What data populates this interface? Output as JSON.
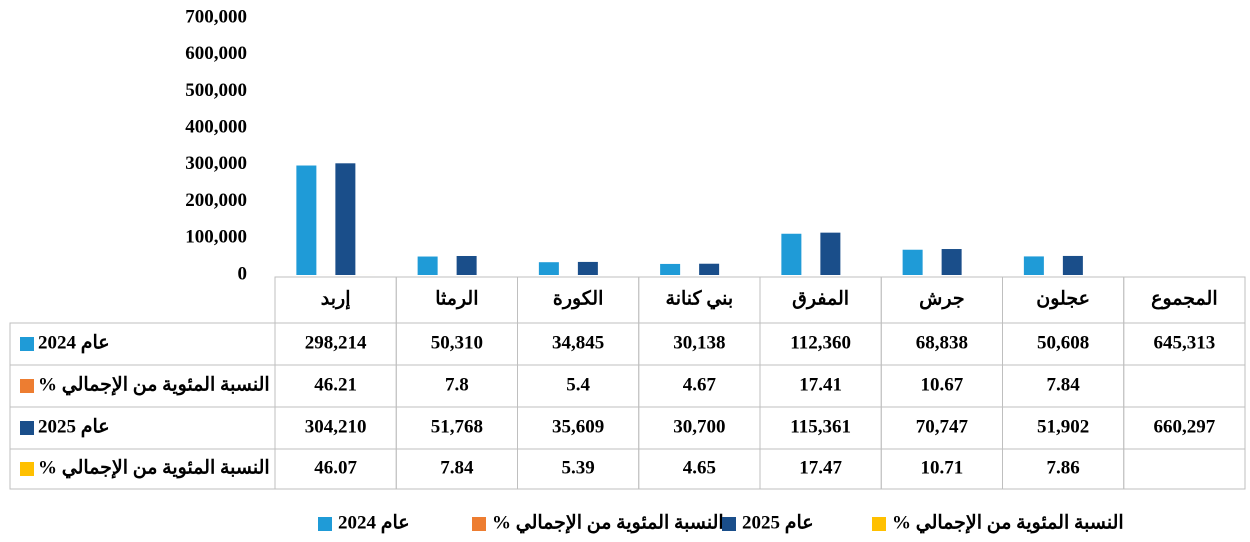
{
  "chart_data": {
    "type": "bar",
    "categories": [
      "إربد",
      "الرمثا",
      "الكورة",
      "بني كنانة",
      "المفرق",
      "جرش",
      "عجلون"
    ],
    "total_header": "المجموع",
    "ylim": [
      0,
      700000
    ],
    "yticks": [
      0,
      {
        "value": 100000,
        "label": "100,000"
      },
      {
        "value": 200000,
        "label": "200,000"
      },
      {
        "value": 300000,
        "label": "300,000"
      },
      {
        "value": 400000,
        "label": "400,000"
      },
      {
        "value": 500000,
        "label": "500,000"
      },
      {
        "value": 600000,
        "label": "600,000"
      },
      {
        "value": 700000,
        "label": "700,000"
      }
    ],
    "series": [
      {
        "name": "عام 2024",
        "color": "#1f9bd7",
        "values": [
          298214,
          50310,
          34845,
          30138,
          112360,
          68838,
          50608
        ],
        "value_labels": [
          "298,214",
          "50,310",
          "34,845",
          "30,138",
          "112,360",
          "68,838",
          "50,608"
        ],
        "total": 645313,
        "total_label": "645,313"
      },
      {
        "name": "النسبة المئوية من الإجمالي %",
        "color": "#ed7d31",
        "values": [
          46.21,
          7.8,
          5.4,
          4.67,
          17.41,
          10.67,
          7.84
        ]
      },
      {
        "name": "عام 2025",
        "color": "#1a4e8a",
        "values": [
          304210,
          51768,
          35609,
          30700,
          115361,
          70747,
          51902
        ],
        "value_labels": [
          "304,210",
          "51,768",
          "35,609",
          "30,700",
          "115,361",
          "70,747",
          "51,902"
        ],
        "total": 660297,
        "total_label": "660,297"
      },
      {
        "name": "النسبة المئوية  من الإجمالي %",
        "color": "#ffc000",
        "values": [
          46.07,
          7.84,
          5.39,
          4.65,
          17.47,
          10.71,
          7.86
        ]
      }
    ]
  }
}
